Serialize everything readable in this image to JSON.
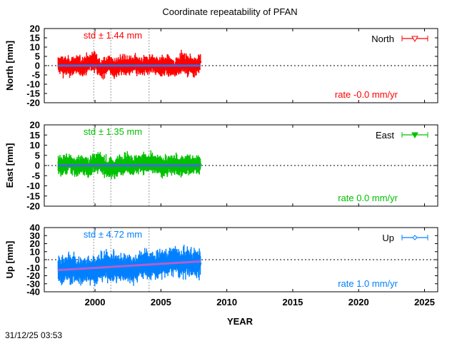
{
  "chart_data": {
    "type": "scatter",
    "title": "Coordinate repeatability of PFAN",
    "xlabel": "YEAR",
    "xlim": [
      1996.15,
      2026.0
    ],
    "xticks": [
      2000,
      2005,
      2010,
      2015,
      2020,
      2025
    ],
    "timestamp": "31/12/25 03:53",
    "event_lines_x": [
      1999.9,
      2001.2,
      2004.1
    ],
    "panels": [
      {
        "name": "North",
        "ylabel": "North [mm]",
        "ylim": [
          -20,
          20
        ],
        "yticks": [
          20,
          15,
          10,
          5,
          0,
          -5,
          -10,
          -15,
          -20
        ],
        "color": "#ff0000",
        "trend_color": "#4169e1",
        "marker": "triangle-down-open",
        "std_label": "std ± 1.44 mm",
        "rate_label": "rate -0.0 mm/yr",
        "std": 1.44,
        "rate": 0.0,
        "intercept": 0.0,
        "x_start": 1997.2,
        "x_end": 2008.0,
        "points": [
          [
            1997.5,
            0.2
          ],
          [
            1998.0,
            -1.0
          ],
          [
            1998.5,
            0.5
          ],
          [
            1999.0,
            -0.5
          ],
          [
            1999.5,
            1.0
          ],
          [
            2000.0,
            3.0
          ],
          [
            2000.5,
            -2.5
          ],
          [
            2001.0,
            1.5
          ],
          [
            2001.5,
            -2.0
          ],
          [
            2002.0,
            1.0
          ],
          [
            2002.5,
            -0.5
          ],
          [
            2003.0,
            0.5
          ],
          [
            2003.5,
            -1.0
          ],
          [
            2004.0,
            0.5
          ],
          [
            2004.5,
            1.0
          ],
          [
            2005.0,
            -0.5
          ],
          [
            2005.5,
            0.0
          ],
          [
            2006.0,
            -2.0
          ],
          [
            2006.5,
            2.0
          ],
          [
            2007.0,
            0.5
          ],
          [
            2007.5,
            -0.5
          ],
          [
            2008.0,
            2.0
          ]
        ]
      },
      {
        "name": "East",
        "ylabel": "East [mm]",
        "ylim": [
          -20,
          20
        ],
        "yticks": [
          20,
          15,
          10,
          5,
          0,
          -5,
          -10,
          -15,
          -20
        ],
        "color": "#00c000",
        "trend_color": "#4169e1",
        "marker": "triangle-down-filled",
        "std_label": "std ± 1.35 mm",
        "rate_label": "rate  0.0 mm/yr",
        "std": 1.35,
        "rate": 0.0,
        "intercept": 0.0,
        "x_start": 1997.2,
        "x_end": 2008.0,
        "points": [
          [
            1997.5,
            0.0
          ],
          [
            1998.0,
            1.0
          ],
          [
            1998.5,
            -0.5
          ],
          [
            1999.0,
            0.5
          ],
          [
            1999.5,
            -1.0
          ],
          [
            2000.0,
            1.5
          ],
          [
            2000.5,
            1.0
          ],
          [
            2001.0,
            -1.5
          ],
          [
            2001.5,
            -1.0
          ],
          [
            2002.0,
            0.5
          ],
          [
            2002.5,
            1.0
          ],
          [
            2003.0,
            0.0
          ],
          [
            2003.5,
            1.5
          ],
          [
            2004.0,
            1.0
          ],
          [
            2004.5,
            0.5
          ],
          [
            2005.0,
            -0.5
          ],
          [
            2005.5,
            0.0
          ],
          [
            2006.0,
            0.5
          ],
          [
            2006.5,
            -0.5
          ],
          [
            2007.0,
            0.5
          ],
          [
            2007.5,
            0.0
          ],
          [
            2008.0,
            0.5
          ]
        ]
      },
      {
        "name": "Up",
        "ylabel": "Up [mm]",
        "ylim": [
          -40,
          40
        ],
        "yticks": [
          40,
          30,
          20,
          10,
          0,
          -10,
          -20,
          -30,
          -40
        ],
        "color": "#0080ff",
        "trend_color": "#b060d0",
        "marker": "diamond-open",
        "std_label": "std ± 4.72 mm",
        "rate_label": "rate  1.0 mm/yr",
        "std": 4.72,
        "rate": 1.0,
        "intercept": -13.0,
        "x_start": 1997.2,
        "x_end": 2008.0,
        "points": [
          [
            1997.5,
            -13
          ],
          [
            1998.0,
            -10
          ],
          [
            1998.5,
            -12
          ],
          [
            1999.0,
            -15
          ],
          [
            1999.5,
            -11
          ],
          [
            2000.0,
            -14
          ],
          [
            2000.5,
            -9
          ],
          [
            2001.0,
            -8
          ],
          [
            2001.5,
            -10
          ],
          [
            2002.0,
            -11
          ],
          [
            2002.5,
            -9
          ],
          [
            2003.0,
            -12
          ],
          [
            2003.5,
            -5
          ],
          [
            2004.0,
            -6
          ],
          [
            2004.5,
            -7
          ],
          [
            2005.0,
            -4
          ],
          [
            2005.5,
            -5
          ],
          [
            2006.0,
            0
          ],
          [
            2006.5,
            -6
          ],
          [
            2007.0,
            -3
          ],
          [
            2007.5,
            -4
          ],
          [
            2008.0,
            -5
          ]
        ]
      }
    ]
  }
}
